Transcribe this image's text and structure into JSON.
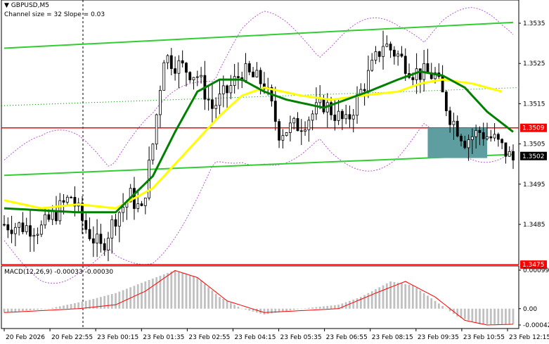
{
  "header": {
    "symbol": "GBPUSD,M5",
    "indicator": "Channel size = 32 Slope = 0.03"
  },
  "macd": {
    "title": "MACD(12,26,9)",
    "value_main": "-0.00033",
    "value_signal": "-0.00030",
    "axis_labels": [
      "0.00099",
      "0.00",
      "-0.00042"
    ],
    "axis_values": [
      0.00099,
      0.0,
      -0.00042
    ]
  },
  "price_axis": {
    "labels": [
      "1.3535",
      "1.3525",
      "1.3515",
      "1.3505",
      "1.3495",
      "1.3485"
    ],
    "values": [
      1.3535,
      1.3525,
      1.3515,
      1.3505,
      1.3495,
      1.3485
    ],
    "badges": [
      {
        "label": "1.3509",
        "value": 1.3509,
        "color": "#ff0000"
      },
      {
        "label": "1.3502",
        "value": 1.3502,
        "color": "#000000"
      },
      {
        "label": "1.3475",
        "value": 1.3475,
        "color": "#ff0000"
      }
    ]
  },
  "time_axis": {
    "labels": [
      "20 Feb 2026",
      "20 Feb 22:55",
      "23 Feb 00:15",
      "23 Feb 01:35",
      "23 Feb 02:55",
      "23 Feb 04:15",
      "23 Feb 05:35",
      "23 Feb 06:55",
      "23 Feb 08:15",
      "23 Feb 09:35",
      "23 Feb 10:55",
      "23 Feb 12:15"
    ]
  },
  "colors": {
    "candle": "#000000",
    "channel": "#32cd32",
    "ma_fast": "#008000",
    "ma_slow": "#ffff00",
    "bands": "#ba55d3",
    "level": "#ff0000",
    "zone": "#5f9ea0",
    "macd_hist": "#c0c0c0",
    "macd_signal": "#ff0000"
  },
  "chart_data": {
    "type": "candlestick",
    "instrument": "GBPUSD",
    "timeframe": "M5",
    "ylim": [
      1.3475,
      1.3535
    ],
    "horizontal_levels": [
      1.3509,
      1.3475
    ],
    "current_price": 1.3502,
    "channel": {
      "upper": [
        [
          0,
          1.35288
        ],
        [
          137,
          1.35352
        ]
      ],
      "lower": [
        [
          0,
          1.34972
        ],
        [
          137,
          1.35024
        ]
      ]
    },
    "close_path": [
      [
        0,
        1.3485
      ],
      [
        10,
        1.3484
      ],
      [
        18,
        1.3492
      ],
      [
        22,
        1.3484
      ],
      [
        26,
        1.3479
      ],
      [
        30,
        1.3487
      ],
      [
        34,
        1.3492
      ],
      [
        37,
        1.3488
      ],
      [
        40,
        1.3505
      ],
      [
        43,
        1.3527
      ],
      [
        46,
        1.3525
      ],
      [
        52,
        1.3522
      ],
      [
        56,
        1.3514
      ],
      [
        60,
        1.3518
      ],
      [
        64,
        1.3523
      ],
      [
        70,
        1.352
      ],
      [
        74,
        1.3508
      ],
      [
        80,
        1.351
      ],
      [
        86,
        1.3515
      ],
      [
        92,
        1.351
      ],
      [
        98,
        1.3522
      ],
      [
        102,
        1.353
      ],
      [
        106,
        1.3527
      ],
      [
        110,
        1.3523
      ],
      [
        116,
        1.3522
      ],
      [
        120,
        1.3512
      ],
      [
        124,
        1.3506
      ],
      [
        128,
        1.3508
      ],
      [
        132,
        1.3506
      ],
      [
        137,
        1.3501
      ]
    ],
    "ma_fast": [
      [
        0,
        1.3489
      ],
      [
        20,
        1.3488
      ],
      [
        30,
        1.3488
      ],
      [
        40,
        1.3497
      ],
      [
        46,
        1.3508
      ],
      [
        52,
        1.3518
      ],
      [
        58,
        1.3521
      ],
      [
        64,
        1.3521
      ],
      [
        70,
        1.3518
      ],
      [
        76,
        1.3516
      ],
      [
        86,
        1.3514
      ],
      [
        92,
        1.3516
      ],
      [
        98,
        1.3518
      ],
      [
        106,
        1.3521
      ],
      [
        112,
        1.3523
      ],
      [
        118,
        1.3522
      ],
      [
        124,
        1.3519
      ],
      [
        130,
        1.3513
      ],
      [
        137,
        1.3508
      ]
    ],
    "ma_slow": [
      [
        0,
        1.3491
      ],
      [
        10,
        1.3489
      ],
      [
        20,
        1.349
      ],
      [
        30,
        1.3489
      ],
      [
        40,
        1.3494
      ],
      [
        50,
        1.3504
      ],
      [
        58,
        1.3512
      ],
      [
        64,
        1.3517
      ],
      [
        70,
        1.3519
      ],
      [
        80,
        1.3517
      ],
      [
        88,
        1.3516
      ],
      [
        96,
        1.3517
      ],
      [
        106,
        1.3518
      ],
      [
        112,
        1.352
      ],
      [
        118,
        1.3521
      ],
      [
        126,
        1.352
      ],
      [
        134,
        1.3518
      ]
    ],
    "zone": {
      "x_from": 114,
      "x_to": 130,
      "y_from": 1.35015,
      "y_to": 1.3509
    },
    "macd_signal": [
      [
        0,
        -0.0001
      ],
      [
        20,
        0.0
      ],
      [
        30,
        0.0001
      ],
      [
        38,
        0.00045
      ],
      [
        46,
        0.00098
      ],
      [
        52,
        0.0008
      ],
      [
        60,
        0.0002
      ],
      [
        70,
        -0.0001
      ],
      [
        80,
        -5e-05
      ],
      [
        90,
        0.0
      ],
      [
        100,
        0.0004
      ],
      [
        108,
        0.0007
      ],
      [
        116,
        0.0003
      ],
      [
        124,
        -0.0003
      ],
      [
        130,
        -0.00042
      ],
      [
        137,
        -0.0004
      ]
    ],
    "macd_hist": [
      [
        0,
        -0.0001
      ],
      [
        12,
        0.0
      ],
      [
        22,
        0.0002
      ],
      [
        30,
        0.0004
      ],
      [
        38,
        0.0007
      ],
      [
        46,
        0.00099
      ],
      [
        52,
        0.0008
      ],
      [
        58,
        0.0003
      ],
      [
        64,
        0.0
      ],
      [
        70,
        -0.00015
      ],
      [
        80,
        0.0
      ],
      [
        90,
        0.0001
      ],
      [
        96,
        0.0003
      ],
      [
        104,
        0.0007
      ],
      [
        110,
        0.0006
      ],
      [
        116,
        0.0002
      ],
      [
        122,
        -0.0002
      ],
      [
        128,
        -0.0004
      ],
      [
        137,
        -0.0004
      ]
    ]
  }
}
